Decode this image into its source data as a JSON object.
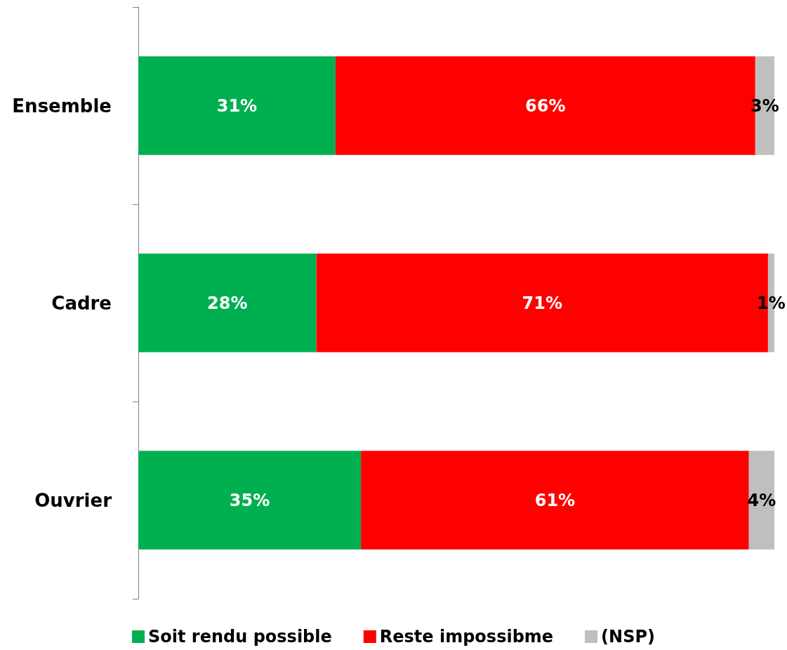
{
  "chart_data": {
    "type": "bar",
    "orientation": "horizontal",
    "stacked": true,
    "categories": [
      "Ensemble",
      "Cadre",
      "Ouvrier"
    ],
    "series": [
      {
        "name": "Soit rendu possible",
        "color": "#00b050",
        "values": [
          31,
          28,
          35
        ],
        "value_labels": [
          "31%",
          "28%",
          "35%"
        ]
      },
      {
        "name": "Reste impossibme",
        "color": "#ff0000",
        "values": [
          66,
          71,
          61
        ],
        "value_labels": [
          "66%",
          "71%",
          "61%"
        ]
      },
      {
        "name": "(NSP)",
        "color": "#bfbfbf",
        "values": [
          3,
          1,
          4
        ],
        "value_labels": [
          "3%",
          "1%",
          "4%"
        ]
      }
    ],
    "legend": "bottom",
    "tick_labels": "y"
  }
}
